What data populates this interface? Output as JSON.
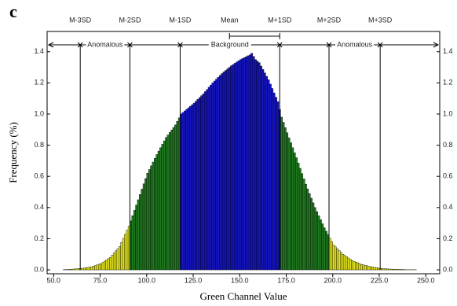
{
  "chart_data": {
    "type": "histogram",
    "panel_label": "c",
    "xlabel": "Green Channel Value",
    "ylabel": "Frequency (%)",
    "xlim": [
      46.5,
      257.5
    ],
    "ylim": [
      -0.025,
      1.53
    ],
    "xticks": [
      {
        "value": 50,
        "label": "50.0"
      },
      {
        "value": 75,
        "label": "75.0"
      },
      {
        "value": 100,
        "label": "100.0"
      },
      {
        "value": 125,
        "label": "125.0"
      },
      {
        "value": 150,
        "label": "150.0"
      },
      {
        "value": 175,
        "label": "175.0"
      },
      {
        "value": 200,
        "label": "200.0"
      },
      {
        "value": 225,
        "label": "225.0"
      },
      {
        "value": 250,
        "label": "250.0"
      }
    ],
    "yticks": [
      {
        "value": 0,
        "label": "0.0"
      },
      0.2,
      0.4,
      0.6,
      0.8,
      {
        "value": 1,
        "label": "1.0"
      },
      1.2,
      1.4
    ],
    "band_colors": [
      "#1414c4",
      "#1f7a1f",
      "#e4e41c"
    ],
    "edge_color": "#000000",
    "mean": {
      "label": "Mean",
      "x": 144.5
    },
    "reference_lines": [
      {
        "label": "M-3SD",
        "x": 64.3
      },
      {
        "label": "M-2SD",
        "x": 91
      },
      {
        "label": "M-1SD",
        "x": 118
      },
      {
        "label": "M+1SD",
        "x": 171.5
      },
      {
        "label": "M+2SD",
        "x": 198
      },
      {
        "label": "M+3SD",
        "x": 225.5
      }
    ],
    "annotations": [
      "Anomalous",
      "Background",
      "Anomalous"
    ],
    "bins": [
      55,
      56,
      57,
      58,
      59,
      60,
      61,
      62,
      63,
      64,
      65,
      66,
      67,
      68,
      69,
      70,
      71,
      72,
      73,
      74,
      75,
      76,
      77,
      78,
      79,
      80,
      81,
      82,
      83,
      84,
      85,
      86,
      87,
      88,
      89,
      90,
      91,
      92,
      93,
      94,
      95,
      96,
      97,
      98,
      99,
      100,
      101,
      102,
      103,
      104,
      105,
      106,
      107,
      108,
      109,
      110,
      111,
      112,
      113,
      114,
      115,
      116,
      117,
      118,
      119,
      120,
      121,
      122,
      123,
      124,
      125,
      126,
      127,
      128,
      129,
      130,
      131,
      132,
      133,
      134,
      135,
      136,
      137,
      138,
      139,
      140,
      141,
      142,
      143,
      144,
      145,
      146,
      147,
      148,
      149,
      150,
      151,
      152,
      153,
      154,
      155,
      156,
      157,
      158,
      159,
      160,
      161,
      162,
      163,
      164,
      165,
      166,
      167,
      168,
      169,
      170,
      171,
      172,
      173,
      174,
      175,
      176,
      177,
      178,
      179,
      180,
      181,
      182,
      183,
      184,
      185,
      186,
      187,
      188,
      189,
      190,
      191,
      192,
      193,
      194,
      195,
      196,
      197,
      198,
      199,
      200,
      201,
      202,
      203,
      204,
      205,
      206,
      207,
      208,
      209,
      210,
      211,
      212,
      213,
      214,
      215,
      216,
      217,
      218,
      219,
      220,
      221,
      222,
      223,
      224,
      225,
      226,
      227,
      228,
      229,
      230,
      231,
      232,
      233,
      234,
      235,
      236,
      237,
      238,
      239,
      240,
      241,
      242,
      243,
      244,
      245
    ],
    "values": [
      0.001,
      0.002,
      0.002,
      0.003,
      0.004,
      0.005,
      0.006,
      0.007,
      0.008,
      0.009,
      0.01,
      0.012,
      0.014,
      0.016,
      0.018,
      0.02,
      0.024,
      0.028,
      0.032,
      0.036,
      0.04,
      0.048,
      0.056,
      0.064,
      0.072,
      0.08,
      0.094,
      0.108,
      0.122,
      0.136,
      0.15,
      0.176,
      0.202,
      0.228,
      0.254,
      0.28,
      0.314,
      0.348,
      0.382,
      0.416,
      0.45,
      0.484,
      0.518,
      0.552,
      0.586,
      0.62,
      0.644,
      0.668,
      0.692,
      0.716,
      0.74,
      0.762,
      0.784,
      0.806,
      0.828,
      0.85,
      0.866,
      0.882,
      0.898,
      0.914,
      0.93,
      0.953,
      0.976,
      1.0,
      1.01,
      1.02,
      1.03,
      1.04,
      1.05,
      1.06,
      1.07,
      1.082,
      1.094,
      1.106,
      1.118,
      1.13,
      1.144,
      1.158,
      1.172,
      1.186,
      1.2,
      1.212,
      1.224,
      1.236,
      1.248,
      1.26,
      1.27,
      1.28,
      1.29,
      1.3,
      1.31,
      1.318,
      1.326,
      1.334,
      1.342,
      1.35,
      1.356,
      1.362,
      1.368,
      1.374,
      1.38,
      1.39,
      1.37,
      1.35,
      1.34,
      1.33,
      1.308,
      1.286,
      1.264,
      1.242,
      1.22,
      1.192,
      1.164,
      1.136,
      1.108,
      1.08,
      1.03,
      0.98,
      0.947,
      0.913,
      0.88,
      0.848,
      0.816,
      0.784,
      0.752,
      0.72,
      0.686,
      0.652,
      0.618,
      0.584,
      0.55,
      0.52,
      0.49,
      0.46,
      0.43,
      0.4,
      0.374,
      0.348,
      0.322,
      0.296,
      0.27,
      0.248,
      0.226,
      0.204,
      0.182,
      0.16,
      0.148,
      0.136,
      0.124,
      0.112,
      0.1,
      0.092,
      0.084,
      0.076,
      0.068,
      0.06,
      0.055,
      0.05,
      0.045,
      0.04,
      0.035,
      0.032,
      0.029,
      0.026,
      0.023,
      0.02,
      0.018,
      0.016,
      0.014,
      0.012,
      0.01,
      0.009,
      0.008,
      0.007,
      0.006,
      0.005,
      0.005,
      0.004,
      0.004,
      0.003,
      0.003,
      0.003,
      0.002,
      0.002,
      0.001,
      0.001,
      0.001,
      0.001,
      0.001,
      0.001
    ]
  }
}
